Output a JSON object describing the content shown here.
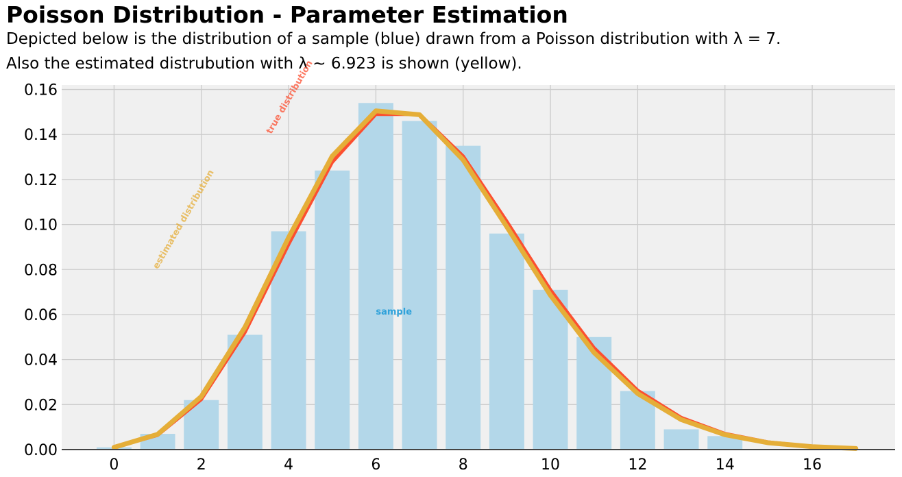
{
  "title": "Poisson Distribution - Parameter Estimation",
  "subtitle_line1": "Depicted below is the distribution of a sample (blue) drawn from a Poisson distribution with λ = 7.",
  "subtitle_line2": "Also the estimated distrubution with λ ~ 6.923 is shown (yellow).",
  "colors": {
    "sample": "#b3d7e9",
    "sample_text": "#30a2da",
    "true": "#fc4f30",
    "estimated": "#e5ae38",
    "plot_bg": "#f0f0f0",
    "grid": "#cbcbcb"
  },
  "chart_data": {
    "type": "bar",
    "grid": true,
    "xlim": [
      -1.2,
      17.9
    ],
    "ylim": [
      0,
      0.162
    ],
    "x_ticks": [
      0,
      2,
      4,
      6,
      8,
      10,
      12,
      14,
      16
    ],
    "x_tick_labels": [
      "0",
      "2",
      "4",
      "6",
      "8",
      "10",
      "12",
      "14",
      "16"
    ],
    "y_ticks": [
      0,
      0.02,
      0.04,
      0.06,
      0.08,
      0.1,
      0.12,
      0.14,
      0.16
    ],
    "y_tick_labels": [
      "0.00",
      "0.02",
      "0.04",
      "0.06",
      "0.08",
      "0.10",
      "0.12",
      "0.14",
      "0.16"
    ],
    "bars": {
      "x": [
        0,
        1,
        2,
        3,
        4,
        5,
        6,
        7,
        8,
        9,
        10,
        11,
        12,
        13,
        14,
        15,
        16,
        17
      ],
      "values": [
        0.001,
        0.007,
        0.022,
        0.051,
        0.097,
        0.124,
        0.154,
        0.146,
        0.135,
        0.096,
        0.071,
        0.05,
        0.026,
        0.009,
        0.006,
        0.0,
        0.0,
        0.0
      ]
    },
    "series": [
      {
        "key": "true",
        "x": [
          0,
          1,
          2,
          3,
          4,
          5,
          6,
          7,
          8,
          9,
          10,
          11,
          12,
          13,
          14,
          15,
          16,
          17
        ],
        "values": [
          0.0009,
          0.0064,
          0.0223,
          0.0521,
          0.0912,
          0.1277,
          0.149,
          0.149,
          0.1304,
          0.1014,
          0.071,
          0.0452,
          0.0263,
          0.0142,
          0.0071,
          0.0033,
          0.0014,
          0.0006
        ]
      },
      {
        "key": "estimated",
        "x": [
          0,
          1,
          2,
          3,
          4,
          5,
          6,
          7,
          8,
          9,
          10,
          11,
          12,
          13,
          14,
          15,
          16,
          17
        ],
        "values": [
          0.001,
          0.0068,
          0.0236,
          0.0544,
          0.0942,
          0.1304,
          0.1505,
          0.1488,
          0.1287,
          0.099,
          0.0686,
          0.0431,
          0.0249,
          0.0133,
          0.0066,
          0.003,
          0.0013,
          0.0005
        ]
      }
    ],
    "annotations": [
      {
        "key": "sample",
        "text": "sample",
        "x": 6.0,
        "y": 0.06,
        "rotation": 0
      },
      {
        "key": "true",
        "text": "true distribution",
        "x": 3.6,
        "y": 0.14,
        "rotation": 60
      },
      {
        "key": "estimated",
        "text": "estimated distribution",
        "x": 1.0,
        "y": 0.08,
        "rotation": 60
      }
    ]
  }
}
